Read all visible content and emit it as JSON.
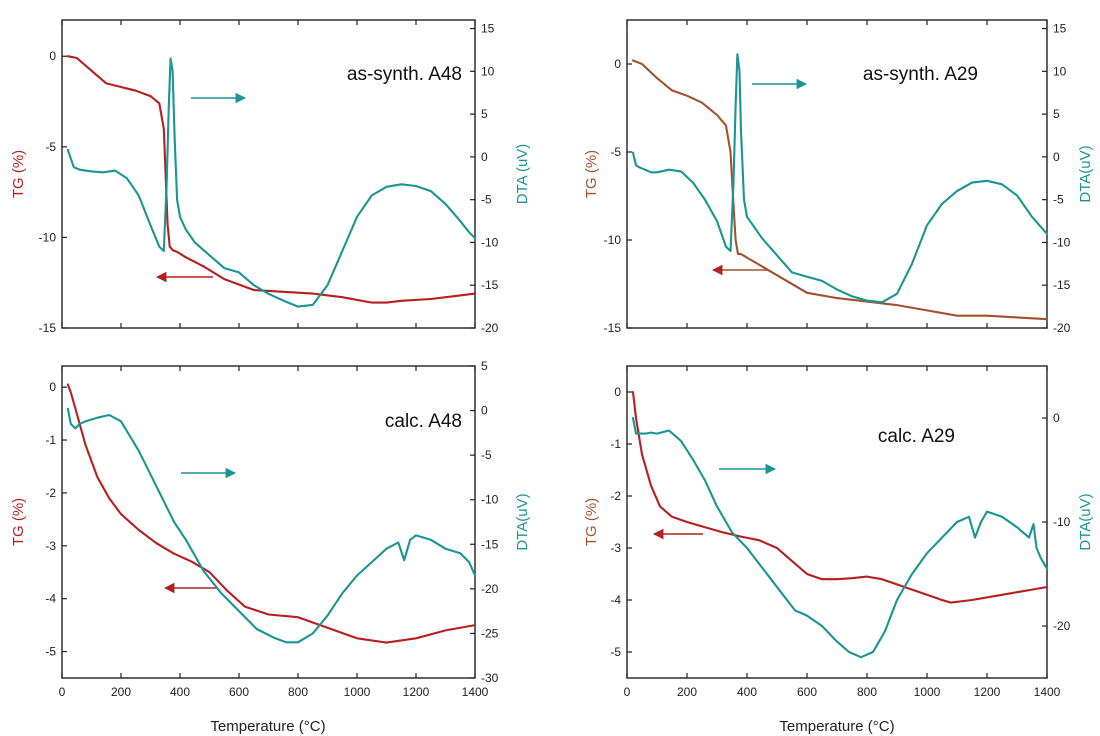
{
  "colors": {
    "tg": "#b51f1f",
    "tg_alt": "#a0522d",
    "dta": "#1a9494",
    "axis": "#222222"
  },
  "chart_data": [
    {
      "type": "line",
      "title": "as-synth. A48",
      "xlabel": "",
      "ylabel_left": "TG (%)",
      "ylabel_right": "DTA (uV)",
      "xlim": [
        0,
        1400
      ],
      "ylim_left": [
        -15,
        2
      ],
      "ylim_right": [
        -20,
        16
      ],
      "xticks": [
        0,
        200,
        400,
        600,
        800,
        1000,
        1200,
        1400
      ],
      "xtick_labels": [],
      "yticks_left": [
        -15,
        -10,
        -5,
        0
      ],
      "yticks_right": [
        -20,
        -15,
        -10,
        -5,
        0,
        5,
        10,
        15
      ],
      "series": [
        {
          "axis": "left",
          "color": "tg",
          "arrow": "left",
          "x": [
            20,
            50,
            100,
            150,
            200,
            250,
            300,
            330,
            345,
            352,
            358,
            365,
            375,
            390,
            420,
            480,
            550,
            650,
            750,
            850,
            950,
            1050,
            1100,
            1150,
            1250,
            1350,
            1400
          ],
          "y": [
            0,
            -0.1,
            -0.8,
            -1.5,
            -1.7,
            -1.9,
            -2.2,
            -2.6,
            -4,
            -6.8,
            -9.3,
            -10.5,
            -10.7,
            -10.8,
            -11.1,
            -11.6,
            -12.3,
            -12.9,
            -13.0,
            -13.1,
            -13.3,
            -13.6,
            -13.6,
            -13.5,
            -13.4,
            -13.2,
            -13.1
          ]
        },
        {
          "axis": "right",
          "color": "dta",
          "arrow": "right",
          "x": [
            20,
            40,
            60,
            80,
            100,
            140,
            180,
            220,
            260,
            300,
            330,
            345,
            355,
            362,
            368,
            375,
            382,
            390,
            400,
            420,
            450,
            500,
            550,
            600,
            650,
            700,
            750,
            800,
            850,
            900,
            950,
            1000,
            1050,
            1100,
            1150,
            1200,
            1250,
            1300,
            1350,
            1380,
            1400
          ],
          "y": [
            0.8,
            -1.2,
            -1.5,
            -1.6,
            -1.7,
            -1.8,
            -1.6,
            -2.5,
            -4.5,
            -8,
            -10.5,
            -11,
            -3,
            6,
            11.5,
            10,
            2,
            -5,
            -7,
            -8.5,
            -10,
            -11.5,
            -13,
            -13.5,
            -15,
            -16,
            -16.8,
            -17.5,
            -17.3,
            -15,
            -11,
            -7,
            -4.5,
            -3.5,
            -3.2,
            -3.4,
            -4,
            -5.5,
            -7.5,
            -8.8,
            -9.5
          ]
        }
      ]
    },
    {
      "type": "line",
      "title": "as-synth. A29",
      "xlabel": "",
      "ylabel_left": "TG (%)",
      "ylabel_right": "DTA(uV)",
      "xlim": [
        0,
        1400
      ],
      "ylim_left": [
        -15,
        2.5
      ],
      "ylim_right": [
        -20,
        16
      ],
      "xticks": [
        0,
        200,
        400,
        600,
        800,
        1000,
        1200,
        1400
      ],
      "xtick_labels": [],
      "yticks_left": [
        -15,
        -10,
        -5,
        0
      ],
      "yticks_right": [
        -20,
        -15,
        -10,
        -5,
        0,
        5,
        10,
        15
      ],
      "series": [
        {
          "axis": "left",
          "color": "tg_alt",
          "arrow": "left",
          "x": [
            20,
            50,
            100,
            150,
            200,
            250,
            300,
            330,
            345,
            355,
            362,
            370,
            380,
            400,
            450,
            500,
            600,
            700,
            800,
            900,
            1000,
            1100,
            1200,
            1300,
            1400
          ],
          "y": [
            0.2,
            0,
            -0.8,
            -1.5,
            -1.8,
            -2.2,
            -2.9,
            -3.5,
            -5,
            -8,
            -10,
            -10.8,
            -10.8,
            -11.0,
            -11.5,
            -12.0,
            -13.0,
            -13.3,
            -13.5,
            -13.7,
            -14.0,
            -14.3,
            -14.3,
            -14.4,
            -14.5
          ]
        },
        {
          "axis": "right",
          "color": "dta",
          "arrow": "right",
          "x": [
            20,
            30,
            40,
            60,
            80,
            100,
            140,
            180,
            220,
            260,
            300,
            330,
            345,
            355,
            362,
            368,
            375,
            380,
            390,
            400,
            420,
            450,
            500,
            550,
            600,
            650,
            700,
            750,
            800,
            850,
            900,
            950,
            1000,
            1050,
            1100,
            1150,
            1200,
            1250,
            1300,
            1350,
            1400
          ],
          "y": [
            0.5,
            -1,
            -1.2,
            -1.5,
            -1.8,
            -1.8,
            -1.5,
            -1.7,
            -3,
            -5,
            -7.5,
            -10.5,
            -11,
            -3,
            6,
            12,
            10,
            3,
            -5,
            -7,
            -8,
            -9.5,
            -11.5,
            -13.5,
            -14,
            -14.5,
            -15.5,
            -16.3,
            -16.8,
            -17,
            -16,
            -12.5,
            -8,
            -5.5,
            -4,
            -3,
            -2.8,
            -3.2,
            -4.5,
            -7,
            -9
          ]
        }
      ]
    },
    {
      "type": "line",
      "title": "calc. A48",
      "xlabel": "Temperature (°C)",
      "ylabel_left": "TG (%)",
      "ylabel_right": "DTA(uV)",
      "xlim": [
        0,
        1400
      ],
      "ylim_left": [
        -5.5,
        0.4
      ],
      "ylim_right": [
        -30,
        5
      ],
      "xticks": [
        0,
        200,
        400,
        600,
        800,
        1000,
        1200,
        1400
      ],
      "xtick_labels": [
        "0",
        "200",
        "400",
        "600",
        "800",
        "1000",
        "1200",
        "1400"
      ],
      "yticks_left": [
        -5,
        -4,
        -3,
        -2,
        -1,
        0
      ],
      "yticks_right": [
        -30,
        -25,
        -20,
        -15,
        -10,
        -5,
        0,
        5
      ],
      "series": [
        {
          "axis": "left",
          "color": "tg",
          "arrow": "left",
          "x": [
            20,
            30,
            50,
            80,
            120,
            160,
            200,
            260,
            320,
            380,
            440,
            500,
            560,
            620,
            700,
            800,
            900,
            1000,
            1100,
            1200,
            1300,
            1400
          ],
          "y": [
            0.05,
            -0.1,
            -0.5,
            -1.1,
            -1.7,
            -2.1,
            -2.4,
            -2.7,
            -2.95,
            -3.15,
            -3.3,
            -3.5,
            -3.85,
            -4.15,
            -4.3,
            -4.35,
            -4.55,
            -4.75,
            -4.83,
            -4.75,
            -4.6,
            -4.5
          ]
        },
        {
          "axis": "right",
          "color": "dta",
          "arrow": "right",
          "x": [
            20,
            30,
            45,
            60,
            80,
            120,
            160,
            200,
            260,
            320,
            380,
            420,
            480,
            540,
            600,
            660,
            720,
            760,
            800,
            850,
            900,
            950,
            1000,
            1050,
            1100,
            1140,
            1160,
            1180,
            1200,
            1250,
            1300,
            1350,
            1380,
            1400
          ],
          "y": [
            0.2,
            -1.5,
            -2,
            -1.5,
            -1.2,
            -0.8,
            -0.5,
            -1.2,
            -4.5,
            -8.5,
            -12.5,
            -14.5,
            -18,
            -20.5,
            -22.5,
            -24.5,
            -25.5,
            -26,
            -26,
            -25,
            -23,
            -20.5,
            -18.5,
            -17,
            -15.5,
            -14.8,
            -16.8,
            -14.5,
            -14,
            -14.5,
            -15.5,
            -16,
            -17,
            -18.5
          ]
        }
      ]
    },
    {
      "type": "line",
      "title": "calc. A29",
      "xlabel": "Temperature (°C)",
      "ylabel_left": "TG (%)",
      "ylabel_right": "DTA(uV)",
      "xlim": [
        0,
        1400
      ],
      "ylim_left": [
        -5.5,
        0.5
      ],
      "ylim_right": [
        -25,
        5
      ],
      "xticks": [
        0,
        200,
        400,
        600,
        800,
        1000,
        1200,
        1400
      ],
      "xtick_labels": [
        "0",
        "200",
        "400",
        "600",
        "800",
        "1000",
        "1200",
        "1400"
      ],
      "yticks_left": [
        -5,
        -4,
        -3,
        -2,
        -1,
        0
      ],
      "yticks_right": [
        -20,
        -10,
        0
      ],
      "series": [
        {
          "axis": "left",
          "color": "tg",
          "arrow": "left",
          "x": [
            20,
            30,
            50,
            80,
            110,
            150,
            200,
            260,
            320,
            380,
            440,
            500,
            540,
            600,
            650,
            700,
            750,
            800,
            850,
            900,
            950,
            1000,
            1050,
            1080,
            1150,
            1250,
            1350,
            1400
          ],
          "y": [
            0,
            -0.5,
            -1.2,
            -1.8,
            -2.2,
            -2.4,
            -2.5,
            -2.6,
            -2.7,
            -2.78,
            -2.85,
            -3.0,
            -3.2,
            -3.5,
            -3.6,
            -3.6,
            -3.58,
            -3.55,
            -3.6,
            -3.7,
            -3.8,
            -3.9,
            -4.0,
            -4.05,
            -4.0,
            -3.9,
            -3.8,
            -3.75
          ]
        },
        {
          "axis": "right",
          "color": "dta",
          "arrow": "right",
          "x": [
            20,
            30,
            45,
            60,
            80,
            100,
            140,
            180,
            220,
            260,
            300,
            350,
            400,
            440,
            480,
            520,
            560,
            600,
            650,
            700,
            740,
            780,
            820,
            860,
            900,
            950,
            1000,
            1050,
            1100,
            1140,
            1160,
            1180,
            1200,
            1250,
            1300,
            1340,
            1355,
            1365,
            1380,
            1400
          ],
          "y": [
            0,
            -1.5,
            -1.5,
            -1.5,
            -1.4,
            -1.5,
            -1.2,
            -2.2,
            -4,
            -6,
            -8.5,
            -11,
            -12.5,
            -14,
            -15.5,
            -17,
            -18.5,
            -19,
            -20,
            -21.5,
            -22.5,
            -23,
            -22.5,
            -20.5,
            -17.5,
            -15,
            -13,
            -11.5,
            -10,
            -9.5,
            -11.5,
            -10,
            -9,
            -9.5,
            -10.5,
            -11.5,
            -10.2,
            -12.5,
            -13.5,
            -14.5
          ]
        }
      ]
    }
  ]
}
